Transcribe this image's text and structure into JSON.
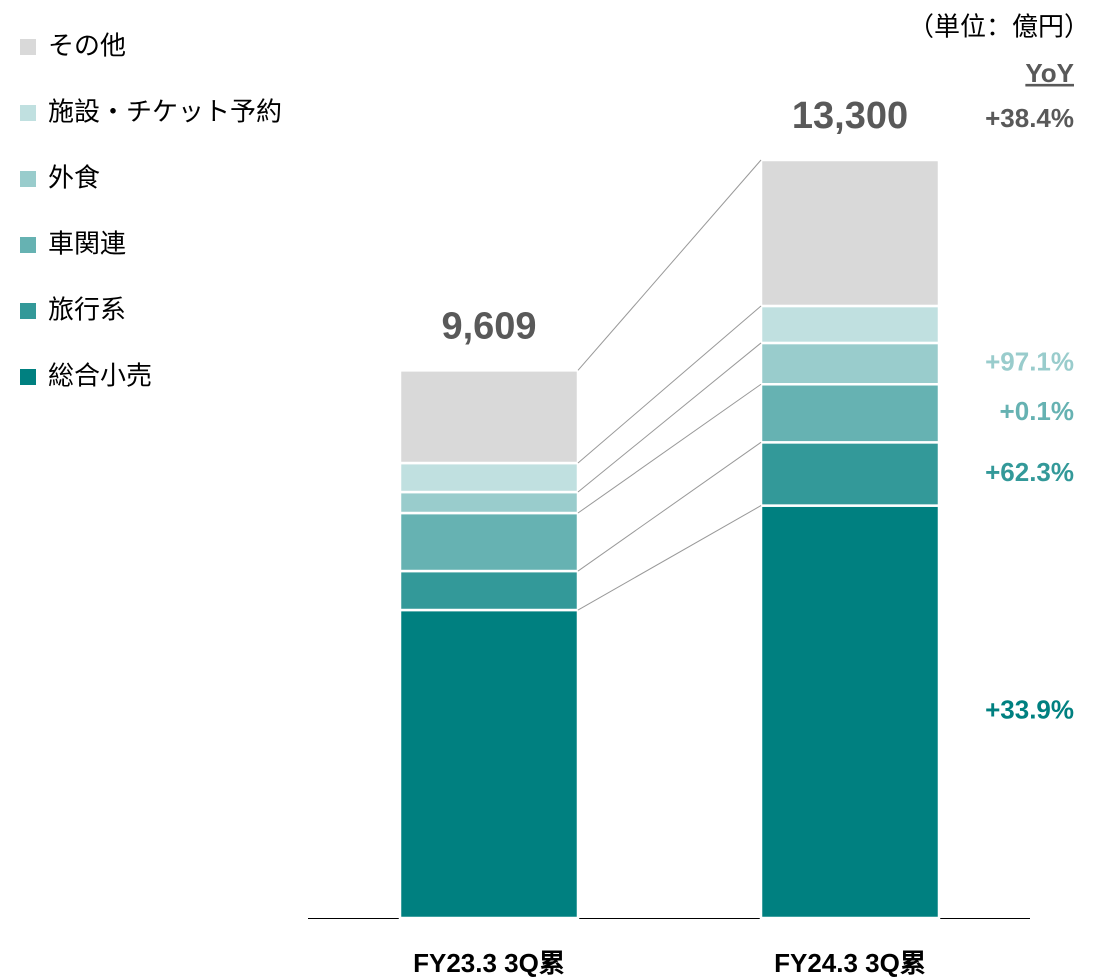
{
  "chart_data": {
    "type": "stacked-bar",
    "unit_label": "（単位：億円）",
    "yoy_title": "YoY",
    "categories": [
      "FY23.3 3Q累",
      "FY24.3 3Q累"
    ],
    "series": [
      {
        "name": "総合小売",
        "color": "#008080",
        "values": [
          5404,
          7236
        ],
        "yoy": "+33.9%"
      },
      {
        "name": "旅行系",
        "color": "#339999",
        "values": [
          684,
          1110
        ],
        "yoy": "+62.3%"
      },
      {
        "name": "車関連",
        "color": "#66b2b2",
        "values": [
          1018,
          1019
        ],
        "yoy": "+0.1%"
      },
      {
        "name": "外食",
        "color": "#99cccc",
        "values": [
          368,
          725
        ],
        "yoy": "+97.1%"
      },
      {
        "name": "施設・チケット予約",
        "color": "#c0e0e0",
        "values": [
          509,
          649
        ]
      },
      {
        "name": "その他",
        "color": "#d9d9d9",
        "values": [
          1626,
          2561
        ]
      }
    ],
    "totals": {
      "values": [
        9609,
        13300
      ],
      "value_labels": [
        "9,609",
        "13,300"
      ],
      "yoy": "+38.4%",
      "color": "#595959"
    }
  }
}
